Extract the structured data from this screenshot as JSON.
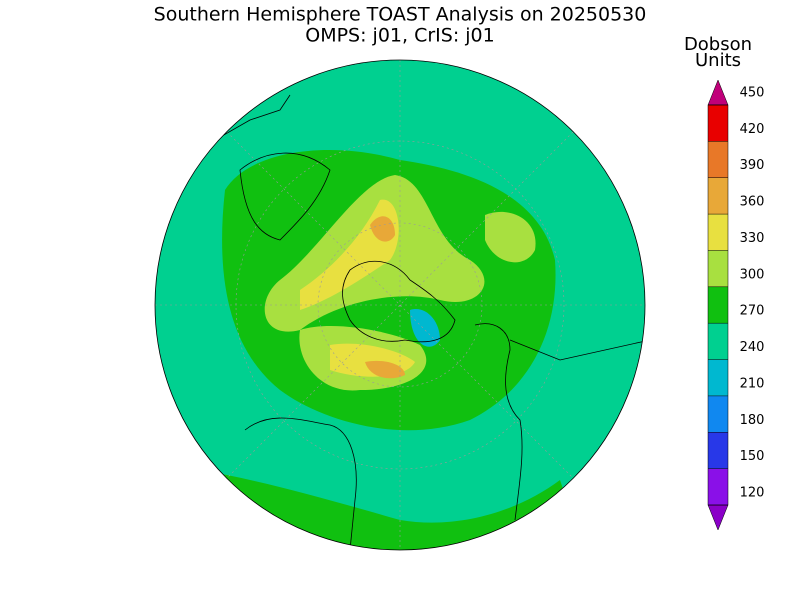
{
  "header": {
    "title": "Southern Hemisphere TOAST Analysis on 20250530",
    "subtitle": "OMPS: j01, CrIS: j01"
  },
  "colorbar": {
    "title_lines": [
      "Dobson",
      "Units"
    ],
    "ticks": [
      120,
      150,
      180,
      210,
      240,
      270,
      300,
      330,
      360,
      390,
      420,
      450
    ],
    "colors": [
      "#8a00c8",
      "#8a10e8",
      "#2838e8",
      "#1088f0",
      "#00b8d0",
      "#00d090",
      "#10c010",
      "#a8e040",
      "#e8e040",
      "#e8a838",
      "#e87828",
      "#e80000",
      "#c0007a"
    ]
  }
}
